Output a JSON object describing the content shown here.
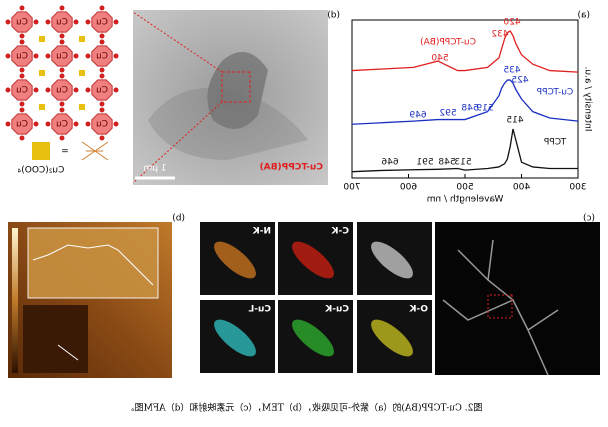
{
  "panels": {
    "a": "(a)",
    "b": "(b)",
    "c": "(c)",
    "d": "(d)"
  },
  "chart_data": {
    "type": "line",
    "x_label": "Wavelength / nm",
    "y_label": "Intensity / a.u.",
    "x": [
      300,
      350,
      380,
      400,
      410,
      415,
      420,
      425,
      430,
      435,
      440,
      460,
      500,
      513,
      548,
      591,
      646,
      700
    ],
    "xlim": [
      300,
      700
    ],
    "xticks": [
      300,
      400,
      500,
      600,
      700
    ],
    "ylim": [
      0,
      100
    ],
    "series": [
      {
        "name": "Cu-TCPP(BA)",
        "color": "#e02020",
        "values": [
          67,
          68,
          72,
          78,
          85,
          90,
          93,
          92,
          88,
          82,
          76,
          70,
          68,
          68,
          74,
          70,
          69,
          68
        ],
        "peak_labels": [
          "420",
          "432",
          "540"
        ]
      },
      {
        "name": "Cu-TCPP",
        "color": "#1a2fc0",
        "values": [
          36,
          38,
          42,
          50,
          56,
          60,
          62,
          62,
          60,
          57,
          52,
          42,
          37,
          37,
          37,
          36,
          35,
          34
        ],
        "peak_labels": [
          "435",
          "425",
          "519",
          "548",
          "592",
          "649"
        ]
      },
      {
        "name": "TCPP",
        "color": "#111111",
        "values": [
          6,
          6,
          7,
          10,
          24,
          31,
          20,
          12,
          9,
          8,
          7,
          6,
          5,
          6,
          5.5,
          5.2,
          4.8,
          4
        ],
        "peak_labels": [
          "415",
          "513",
          "548",
          "591",
          "646"
        ]
      }
    ]
  },
  "tem": {
    "sample_label": "Cu-TCPP(BA)",
    "scale_bar": "1 μm"
  },
  "schematic": {
    "node_label": "Cu",
    "equals": "=",
    "cluster_label": "Cu₂(COO)₄"
  },
  "eds_maps": [
    "C-K",
    "N-K",
    "O-K",
    "Cu-K",
    "Cu-L"
  ],
  "caption": "图2. Cu-TCPP(BA)的（a）紫外-可见吸收，（b）TEM，（c）元素映射和（d）AFM图。"
}
